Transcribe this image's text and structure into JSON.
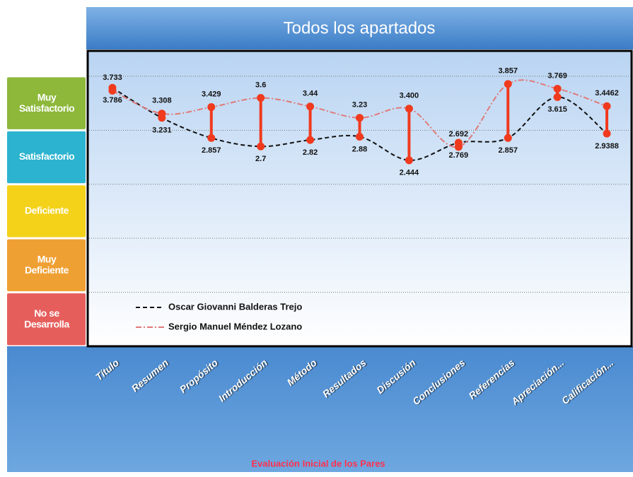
{
  "chart_data": {
    "type": "line",
    "title": "Todos los apartados",
    "x_label": "Evaluación Inicial de los Pares",
    "categories": [
      "Título",
      "Resumen",
      "Propósito",
      "Introducción",
      "Método",
      "Resultados",
      "Discusión",
      "Conclusiones",
      "Referencias",
      "Apreciación...",
      "Calificación..."
    ],
    "series": [
      {
        "name": "Oscar Giovanni Balderas Trejo",
        "color": "#111111",
        "dash": "6,4",
        "values": [
          3.786,
          3.231,
          2.857,
          2.7,
          2.82,
          2.88,
          2.444,
          2.769,
          2.857,
          3.615,
          2.9388
        ],
        "value_labels": [
          "3.786",
          "3.231",
          "2.857",
          "2.7",
          "2.82",
          "2.88",
          "2.444",
          "2.769",
          "2.857",
          "3.615",
          "2.9388"
        ]
      },
      {
        "name": "Sergio Manuel Méndez Lozano",
        "color": "#e07a7a",
        "dash": "8,3,2,3",
        "values": [
          3.733,
          3.308,
          3.429,
          3.6,
          3.44,
          3.23,
          3.4,
          2.692,
          3.857,
          3.769,
          3.4462
        ],
        "value_labels": [
          "3.733",
          "3.308",
          "3.429",
          "3.6",
          "3.44",
          "3.23",
          "3.400",
          "2.692",
          "3.857",
          "3.769",
          "3.4462"
        ]
      }
    ],
    "range_bar_color": "#f03a1e",
    "ylim": [
      -1,
      4.47
    ],
    "yticks": [
      0,
      1,
      2,
      3,
      4
    ],
    "grid": true,
    "y_bands": [
      {
        "label": "Muy Satisfactorio",
        "from": 3,
        "to": 4,
        "color": "#8db83a"
      },
      {
        "label": "Satisfactorio",
        "from": 2,
        "to": 3,
        "color": "#2cb3cf"
      },
      {
        "label": "Deficiente",
        "from": 1,
        "to": 2,
        "color": "#f4d21a"
      },
      {
        "label": "Muy Deficiente",
        "from": 0,
        "to": 1,
        "color": "#efa033"
      },
      {
        "label": "No se Desarrolla",
        "from": -1,
        "to": 0,
        "color": "#e65e5c"
      }
    ],
    "legend": "lower left"
  }
}
